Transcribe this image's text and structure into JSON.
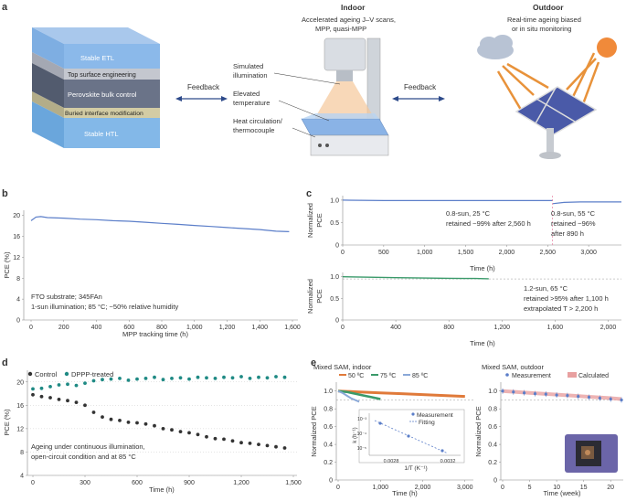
{
  "panel_labels": {
    "a": "a",
    "b": "b",
    "c": "c",
    "d": "d",
    "e": "e"
  },
  "panel_a": {
    "stack_layers": [
      "Stable ETL",
      "Top surface engineering",
      "Perovskite bulk control",
      "Buried interface modification",
      "Stable HTL"
    ],
    "feedback_left": "Feedback",
    "feedback_right": "Feedback",
    "indoor_title": "Indoor",
    "indoor_desc_1": "Accelerated ageing J–V scans,",
    "indoor_desc_2": "MPP, quasi-MPP",
    "sim_illum_1": "Simulated",
    "sim_illum_2": "illumination",
    "elev_temp_1": "Elevated",
    "elev_temp_2": "temperature",
    "heat_1": "Heat circulation/",
    "heat_2": "thermocouple",
    "outdoor_title": "Outdoor",
    "outdoor_desc_1": "Real-time ageing biased",
    "outdoor_desc_2": "or in situ monitoring"
  },
  "chart_data": [
    {
      "id": "b",
      "type": "line",
      "xlabel": "MPP tracking time (h)",
      "ylabel": "PCE (%)",
      "xlim": [
        0,
        1600
      ],
      "ylim": [
        0,
        21
      ],
      "xticks": [
        "0",
        "200",
        "400",
        "600",
        "800",
        "1,000",
        "1,200",
        "1,400",
        "1,600"
      ],
      "yticks": [
        "0",
        "4",
        "8",
        "12",
        "16",
        "20"
      ],
      "series": [
        {
          "name": "PCE",
          "color": "#5b7ec9",
          "x": [
            0,
            30,
            60,
            100,
            200,
            300,
            400,
            500,
            600,
            700,
            800,
            900,
            1000,
            1100,
            1200,
            1300,
            1400,
            1500,
            1580
          ],
          "y": [
            19.0,
            19.7,
            19.8,
            19.6,
            19.5,
            19.3,
            19.2,
            19.0,
            18.9,
            18.7,
            18.5,
            18.3,
            18.1,
            17.9,
            17.7,
            17.5,
            17.3,
            17.0,
            16.9
          ]
        }
      ],
      "annotation_1": "FTO substrate; 345FAn",
      "annotation_2": "1-sun illumination; 85 °C; ~50% relative humidity"
    },
    {
      "id": "c-top",
      "type": "line",
      "xlabel": "Time (h)",
      "ylabel_1": "Normalized",
      "ylabel_2": "PCE",
      "xlim": [
        0,
        3400
      ],
      "ylim": [
        0,
        1.1
      ],
      "xticks": [
        "0",
        "500",
        "1,000",
        "1,500",
        "2,000",
        "2,500",
        "3,000"
      ],
      "yticks": [
        "0",
        "0.5",
        "1.0"
      ],
      "series": [
        {
          "name": "25 °C",
          "color": "#5b7ec9",
          "x": [
            0,
            500,
            1000,
            1500,
            2000,
            2560
          ],
          "y": [
            1.0,
            0.99,
            0.99,
            0.99,
            0.99,
            0.99
          ]
        },
        {
          "name": "55 °C",
          "color": "#5b7ec9",
          "x": [
            2560,
            2700,
            2900,
            3100,
            3300,
            3400
          ],
          "y": [
            0.92,
            0.95,
            0.96,
            0.96,
            0.96,
            0.96
          ]
        }
      ],
      "annotation_left_1": "0.8-sun, 25 °C",
      "annotation_left_2": "retained ~99% after 2,560 h",
      "annotation_right_1": "0.8-sun, 55 °C",
      "annotation_right_2": "retained ~96%",
      "annotation_right_3": "after 890 h"
    },
    {
      "id": "c-bottom",
      "type": "line",
      "xlabel": "Time (h)",
      "ylabel_1": "Normalized",
      "ylabel_2": "PCE",
      "xlim": [
        0,
        2100
      ],
      "ylim": [
        0,
        1.1
      ],
      "xticks": [
        "0",
        "400",
        "800",
        "1,200",
        "1,600",
        "2,000"
      ],
      "yticks": [
        "0",
        "0.5",
        "1.0"
      ],
      "series": [
        {
          "name": "65 °C",
          "color": "#3a9a6a",
          "x": [
            0,
            200,
            400,
            600,
            800,
            1000,
            1100
          ],
          "y": [
            1.0,
            0.99,
            0.98,
            0.97,
            0.965,
            0.96,
            0.955
          ]
        }
      ],
      "annotation_1": "1.2-sun, 65 °C",
      "annotation_2": "retained >95% after 1,100 h",
      "annotation_3": "extrapolated T > 2,200 h"
    },
    {
      "id": "d",
      "type": "scatter",
      "xlabel": "Time (h)",
      "ylabel": "PCE (%)",
      "xlim": [
        0,
        1500
      ],
      "ylim": [
        4,
        22
      ],
      "xticks": [
        "0",
        "300",
        "600",
        "900",
        "1,200",
        "1,500"
      ],
      "yticks": [
        "4",
        "8",
        "12",
        "16",
        "20"
      ],
      "legend": [
        "Control",
        "DPPP-treated"
      ],
      "series": [
        {
          "name": "Control",
          "color": "#333333",
          "x": [
            0,
            50,
            100,
            150,
            200,
            250,
            300,
            350,
            400,
            450,
            500,
            550,
            600,
            650,
            700,
            750,
            800,
            850,
            900,
            950,
            1000,
            1050,
            1100,
            1150,
            1200,
            1250,
            1300,
            1350,
            1400,
            1450
          ],
          "y": [
            17.8,
            17.5,
            17.3,
            17.0,
            16.8,
            16.5,
            16.0,
            14.8,
            14.0,
            13.6,
            13.4,
            13.1,
            13.0,
            12.8,
            12.5,
            12.0,
            11.8,
            11.5,
            11.3,
            11.0,
            10.6,
            10.3,
            10.2,
            9.9,
            9.6,
            9.5,
            9.3,
            9.1,
            8.9,
            8.7
          ]
        },
        {
          "name": "DPPP-treated",
          "color": "#1f8a84",
          "x": [
            0,
            50,
            100,
            150,
            200,
            250,
            300,
            350,
            400,
            450,
            500,
            550,
            600,
            650,
            700,
            750,
            800,
            850,
            900,
            950,
            1000,
            1050,
            1100,
            1150,
            1200,
            1250,
            1300,
            1350,
            1400,
            1450
          ],
          "y": [
            18.8,
            18.9,
            19.2,
            19.5,
            19.6,
            19.4,
            19.8,
            20.2,
            20.4,
            20.5,
            20.6,
            20.3,
            20.5,
            20.6,
            20.8,
            20.4,
            20.6,
            20.7,
            20.5,
            20.8,
            20.7,
            20.6,
            20.8,
            20.7,
            20.9,
            20.6,
            20.8,
            20.7,
            20.9,
            20.8
          ]
        }
      ],
      "annotation_1": "Ageing under continuous illumination,",
      "annotation_2": "open-circuit condition and at 85 °C"
    },
    {
      "id": "e-left",
      "type": "line",
      "title": "Mixed SAM, indoor",
      "xlabel": "Time (h)",
      "ylabel": "Normalized PCE",
      "xlim": [
        0,
        3200
      ],
      "ylim": [
        0,
        1.1
      ],
      "xticks": [
        "0",
        "1,000",
        "2,000",
        "3,000"
      ],
      "yticks": [
        "0",
        "0.2",
        "0.4",
        "0.6",
        "0.8",
        "1.0"
      ],
      "legend": [
        "50 ºC",
        "75 ºC",
        "85 ºC"
      ],
      "series": [
        {
          "name": "50 ºC",
          "color": "#e07a3a",
          "x": [
            0,
            500,
            1000,
            1500,
            2000,
            2500,
            3000
          ],
          "y": [
            1.0,
            0.99,
            0.98,
            0.97,
            0.96,
            0.95,
            0.94
          ]
        },
        {
          "name": "75 ºC",
          "color": "#3a9a6a",
          "x": [
            0,
            200,
            400,
            600,
            800,
            1000
          ],
          "y": [
            1.0,
            0.99,
            0.97,
            0.95,
            0.93,
            0.91
          ]
        },
        {
          "name": "85 ºC",
          "color": "#8aa8d8",
          "x": [
            0,
            100,
            200,
            300,
            400,
            500
          ],
          "y": [
            1.0,
            0.98,
            0.95,
            0.92,
            0.9,
            0.88
          ]
        }
      ],
      "inset": {
        "xlabel": "1/T (K⁻¹)",
        "ylabel": "k (h⁻¹)",
        "xticks": [
          "0.0028",
          "0.0032"
        ],
        "yticks": [
          "10⁻³",
          "10⁻⁴",
          "10⁻⁵"
        ],
        "legend": [
          "Measurement",
          "Fitting"
        ]
      }
    },
    {
      "id": "e-right",
      "type": "line",
      "title": "Mixed SAM, outdoor",
      "xlabel": "Time (week)",
      "ylabel": "Normalized PCE",
      "xlim": [
        0,
        22
      ],
      "ylim": [
        0,
        1.1
      ],
      "xticks": [
        "0",
        "5",
        "10",
        "15",
        "20"
      ],
      "yticks": [
        "0",
        "0.2",
        "0.4",
        "0.6",
        "0.8",
        "1.0"
      ],
      "legend": [
        "Measurement",
        "Calculated"
      ],
      "series": [
        {
          "name": "Measurement",
          "color": "#5b7ec9",
          "x": [
            0,
            2,
            4,
            6,
            8,
            10,
            12,
            14,
            16,
            18,
            20,
            22
          ],
          "y": [
            1.0,
            0.99,
            0.98,
            0.97,
            0.965,
            0.955,
            0.95,
            0.94,
            0.93,
            0.92,
            0.91,
            0.9
          ]
        },
        {
          "name": "Calculated",
          "color": "#e8a0a0",
          "x": [
            0,
            5,
            10,
            15,
            20,
            22
          ],
          "y": [
            1.0,
            0.98,
            0.96,
            0.94,
            0.92,
            0.91
          ]
        }
      ]
    }
  ]
}
